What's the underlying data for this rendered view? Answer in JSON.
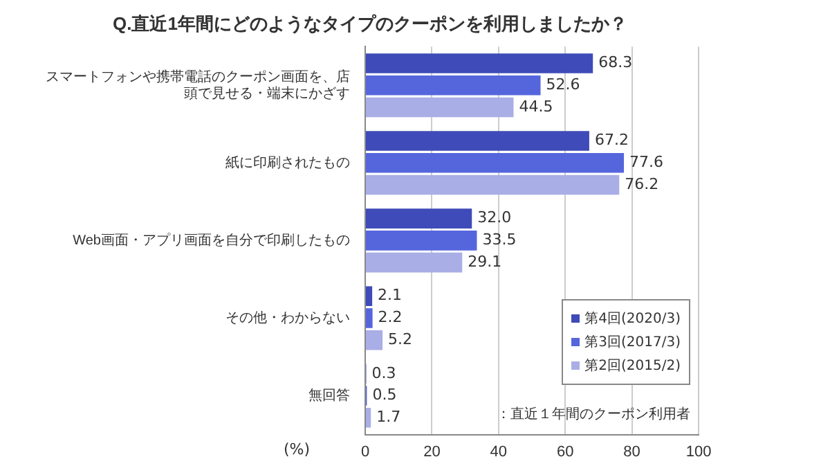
{
  "chart_data": {
    "type": "bar",
    "orientation": "horizontal",
    "title": "Q.直近1年間にどのようなタイプのクーポンを利用しましたか？",
    "xlabel": "(%)",
    "categories": [
      "スマートフォンや携帯電話のクーポン画面を、店頭で見せる・端末にかざす",
      "紙に印刷されたもの",
      "Web画面・アプリ画面を自分で印刷したもの",
      "その他・わからない",
      "無回答"
    ],
    "series": [
      {
        "name": "第4回(2020/3)",
        "color": "#3f4bb8",
        "values": [
          68.3,
          67.2,
          32.0,
          2.1,
          0.3
        ],
        "value_labels": [
          "68.3",
          "67.2",
          "32.0",
          "2.1",
          "0.3"
        ]
      },
      {
        "name": "第3回(2017/3)",
        "color": "#5566dd",
        "values": [
          52.6,
          77.6,
          33.5,
          2.2,
          0.5
        ],
        "value_labels": [
          "52.6",
          "77.6",
          "33.5",
          "2.2",
          "0.5"
        ]
      },
      {
        "name": "第2回(2015/2)",
        "color": "#a9aee6",
        "values": [
          44.5,
          76.2,
          29.1,
          5.2,
          1.7
        ],
        "value_labels": [
          "44.5",
          "76.2",
          "29.1",
          "5.2",
          "1.7"
        ]
      }
    ],
    "xlim": [
      0,
      100
    ],
    "xticks": [
      0,
      20,
      40,
      60,
      80,
      100
    ],
    "grid": "x",
    "legend": "bottom right",
    "annotations": [
      "：直近１年間のクーポン利用者"
    ]
  }
}
